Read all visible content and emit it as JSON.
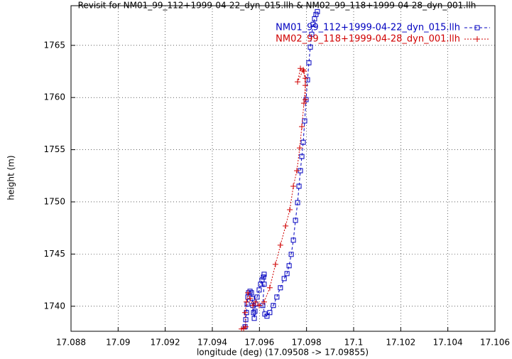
{
  "chart_data": {
    "type": "line",
    "title": "Revisit for NM01_99_112+1999-04-22_dyn_015.llh & NM02_99_118+1999-04-28_dyn_001.llh",
    "x_label": "longitude (deg) (17.09508 -> 17.09855)",
    "y_label": "height (m)",
    "xlim": [
      17.088,
      17.106
    ],
    "xticks": [
      17.088,
      17.09,
      17.092,
      17.094,
      17.096,
      17.098,
      17.1,
      17.102,
      17.104,
      17.106
    ],
    "ylim": [
      1737.6,
      1768.8
    ],
    "yticks": [
      1740,
      1745,
      1750,
      1755,
      1760,
      1765
    ],
    "grid": true,
    "legend": "top-right",
    "series": [
      {
        "name": "NM01_99_112+1999-04-22_dyn_015.llh",
        "color": "#0000c0",
        "marker": "square",
        "dash": "4,3",
        "x": [
          17.09539,
          17.09542,
          17.09545,
          17.09548,
          17.09551,
          17.09554,
          17.0956,
          17.09566,
          17.09569,
          17.09572,
          17.09575,
          17.09578,
          17.09581,
          17.09584,
          17.0959,
          17.09599,
          17.09605,
          17.09611,
          17.09617,
          17.0962,
          17.0962,
          17.09614,
          17.09623,
          17.09632,
          17.09644,
          17.09659,
          17.09674,
          17.09689,
          17.09705,
          17.09717,
          17.09726,
          17.09735,
          17.09744,
          17.09753,
          17.09762,
          17.09768,
          17.09774,
          17.0978,
          17.09786,
          17.09792,
          17.09798,
          17.09804,
          17.0981,
          17.09816,
          17.09822,
          17.09828,
          17.09834,
          17.0984,
          17.09846
        ],
        "values": [
          1738.03,
          1738.71,
          1739.39,
          1740.2,
          1740.88,
          1741.29,
          1741.43,
          1741.29,
          1740.75,
          1740.07,
          1739.39,
          1738.84,
          1739.52,
          1740.2,
          1740.88,
          1741.56,
          1742.11,
          1742.52,
          1742.79,
          1743.06,
          1742.11,
          1740.07,
          1739.25,
          1739.05,
          1739.39,
          1740.07,
          1740.88,
          1741.77,
          1742.65,
          1743.13,
          1743.88,
          1744.97,
          1746.33,
          1748.23,
          1749.93,
          1751.5,
          1752.99,
          1754.35,
          1755.71,
          1757.76,
          1759.8,
          1761.7,
          1763.33,
          1764.83,
          1766.06,
          1767.01,
          1767.55,
          1767.96,
          1768.23
        ]
      },
      {
        "name": "NM02_99_118+1999-04-28_dyn_001.llh",
        "color": "#d00000",
        "marker": "plus",
        "dash": "2,2",
        "x": [
          17.09524,
          17.09533,
          17.09542,
          17.09539,
          17.09545,
          17.09551,
          17.0956,
          17.09572,
          17.09584,
          17.09599,
          17.0962,
          17.09644,
          17.09668,
          17.09689,
          17.09711,
          17.09729,
          17.09744,
          17.09759,
          17.09771,
          17.0978,
          17.09789,
          17.09795,
          17.09789,
          17.09774,
          17.09762,
          17.09786,
          17.09795,
          17.09795
        ],
        "values": [
          1737.82,
          1737.89,
          1738.03,
          1739.39,
          1740.41,
          1741.29,
          1740.75,
          1740.07,
          1740.41,
          1740.07,
          1740.41,
          1741.77,
          1744.01,
          1745.85,
          1747.69,
          1749.25,
          1751.5,
          1752.99,
          1755.17,
          1757.21,
          1759.46,
          1761.16,
          1762.52,
          1762.79,
          1761.5,
          1762.65,
          1761.84,
          1759.8
        ]
      }
    ]
  }
}
